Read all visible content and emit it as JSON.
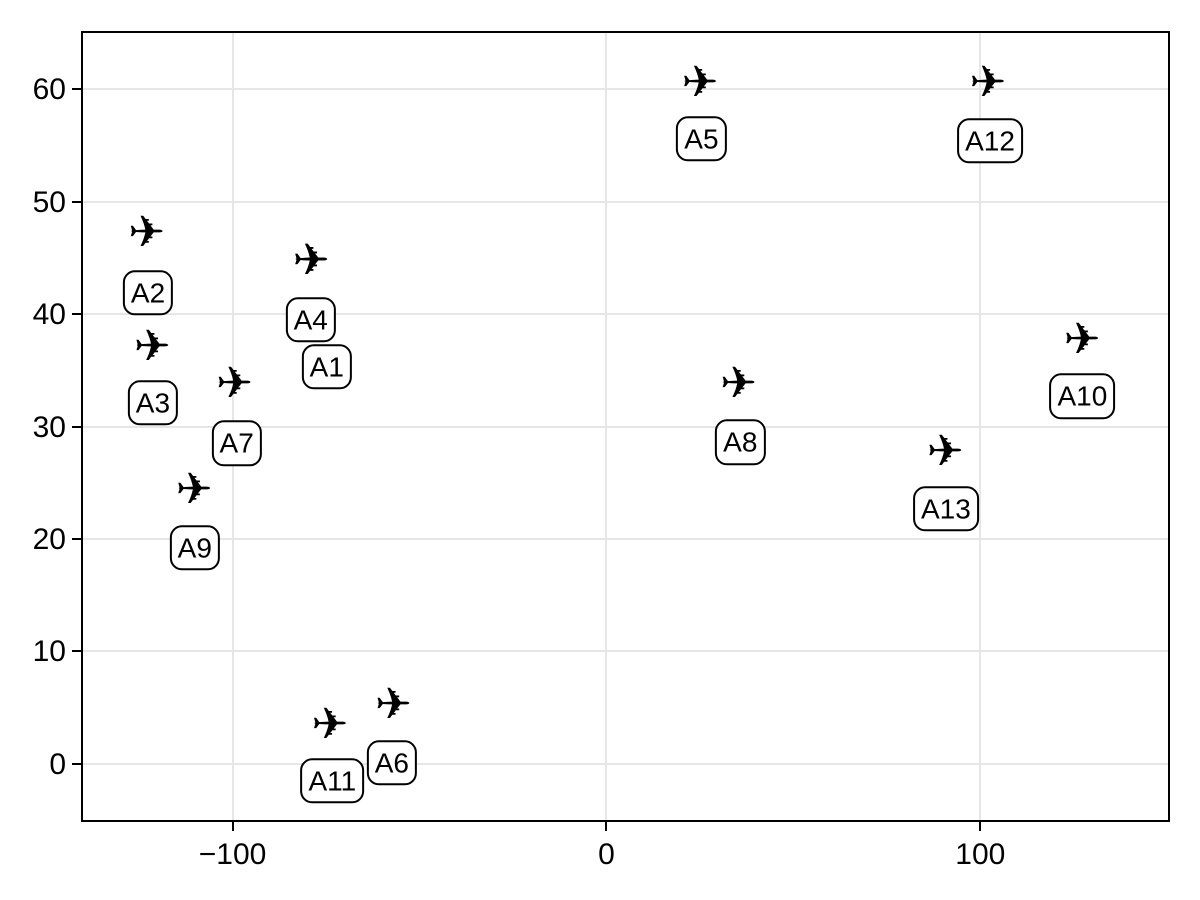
{
  "figure": {
    "background": "#ffffff",
    "title": ""
  },
  "chart_data": {
    "type": "scatter",
    "title": "",
    "xlabel": "",
    "ylabel": "",
    "xlim": [
      -140,
      150.2
    ],
    "ylim": [
      -5,
      65
    ],
    "grid": true,
    "legend": "none",
    "x_ticks": [
      -100,
      0,
      100
    ],
    "x_tick_labels": [
      "−100",
      "0",
      "100"
    ],
    "y_ticks": [
      60,
      50,
      40,
      30,
      20,
      10,
      0
    ],
    "y_tick_labels": [
      "60",
      "50",
      "40",
      "30",
      "20",
      "10",
      "0"
    ],
    "marker": "airplane-icon",
    "marker_glyph": "✈",
    "colors": {
      "marker": "#000000",
      "label_text": "#000000",
      "label_border": "#000000",
      "label_bg": "#ffffff",
      "grid": "#e6e6e6",
      "spine": "#000000",
      "tick": "#000000"
    },
    "points": [
      {
        "id": "A1",
        "x": -79.0,
        "y": 44.6,
        "label_x": -74.8,
        "label_y": 35.3,
        "label_z": 10
      },
      {
        "id": "A2",
        "x": -123.0,
        "y": 47.1,
        "label_x": -122.6,
        "label_y": 41.9,
        "label_z": 10
      },
      {
        "id": "A3",
        "x": -121.5,
        "y": 37.0,
        "label_x": -121.3,
        "label_y": 32.1,
        "label_z": 10
      },
      {
        "id": "A4",
        "x": -79.0,
        "y": 44.6,
        "label_x": -79.1,
        "label_y": 39.5,
        "label_z": 11
      },
      {
        "id": "A5",
        "x": 25.0,
        "y": 60.5,
        "label_x": 25.4,
        "label_y": 55.6,
        "label_z": 10
      },
      {
        "id": "A6",
        "x": -57.0,
        "y": 5.1,
        "label_x": -57.4,
        "label_y": 0.1,
        "label_z": 11
      },
      {
        "id": "A7",
        "x": -99.5,
        "y": 33.7,
        "label_x": -98.9,
        "label_y": 28.5,
        "label_z": 10
      },
      {
        "id": "A8",
        "x": 35.3,
        "y": 33.7,
        "label_x": 35.8,
        "label_y": 28.6,
        "label_z": 10
      },
      {
        "id": "A9",
        "x": -110.3,
        "y": 24.3,
        "label_x": -110.1,
        "label_y": 19.2,
        "label_z": 10
      },
      {
        "id": "A10",
        "x": 127.2,
        "y": 37.6,
        "label_x": 127.3,
        "label_y": 32.7,
        "label_z": 10
      },
      {
        "id": "A11",
        "x": -74.0,
        "y": 3.4,
        "label_x": -73.3,
        "label_y": -1.5,
        "label_z": 9
      },
      {
        "id": "A12",
        "x": 102.0,
        "y": 60.5,
        "label_x": 102.6,
        "label_y": 55.4,
        "label_z": 10
      },
      {
        "id": "A13",
        "x": 90.6,
        "y": 27.6,
        "label_x": 90.8,
        "label_y": 22.7,
        "label_z": 10
      }
    ]
  }
}
